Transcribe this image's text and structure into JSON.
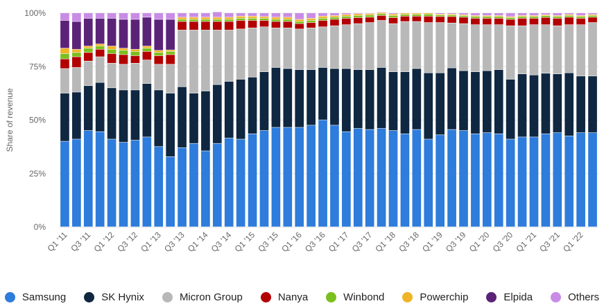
{
  "chart_data": {
    "type": "bar",
    "stacked": true,
    "title": "",
    "xlabel": "",
    "ylabel": "Share of revenue",
    "ylim": [
      0,
      100
    ],
    "yticks": [
      "0%",
      "25%",
      "50%",
      "75%",
      "100%"
    ],
    "xtick_labels": [
      "Q1 '11",
      "Q3 '11",
      "Q1 '12",
      "Q3 '12",
      "Q1 '13",
      "Q3 '13",
      "Q1 '14",
      "Q3 '14",
      "Q1 '15",
      "Q3 '15",
      "Q1 '16",
      "Q3 '16",
      "Q1 '17",
      "Q3 '17",
      "Q1 '18",
      "Q3 '18",
      "Q1 '19",
      "Q3 '19",
      "Q1 '20",
      "Q3 '20",
      "Q1 '21",
      "Q3 '21",
      "Q1 '22"
    ],
    "categories": [
      "Q1 '11",
      "Q2 '11",
      "Q3 '11",
      "Q4 '11",
      "Q1 '12",
      "Q2 '12",
      "Q3 '12",
      "Q4 '12",
      "Q1 '13",
      "Q2 '13",
      "Q3 '13",
      "Q4 '13",
      "Q1 '14",
      "Q2 '14",
      "Q3 '14",
      "Q4 '14",
      "Q1 '15",
      "Q2 '15",
      "Q3 '15",
      "Q4 '15",
      "Q1 '16",
      "Q2 '16",
      "Q3 '16",
      "Q4 '16",
      "Q1 '17",
      "Q2 '17",
      "Q3 '17",
      "Q4 '17",
      "Q1 '18",
      "Q2 '18",
      "Q3 '18",
      "Q4 '18",
      "Q1 '19",
      "Q2 '19",
      "Q3 '19",
      "Q4 '19",
      "Q1 '20",
      "Q2 '20",
      "Q3 '20",
      "Q4 '20",
      "Q1 '21",
      "Q2 '21",
      "Q3 '21",
      "Q4 '21",
      "Q1 '22",
      "Q2 '22"
    ],
    "series": [
      {
        "name": "Samsung",
        "color": "#2e7cdb",
        "values": [
          40,
          41,
          45,
          44.5,
          41,
          39.5,
          40.5,
          42,
          37.5,
          32.8,
          37,
          39,
          35.5,
          39,
          41.5,
          41,
          43.5,
          45,
          46.5,
          46.5,
          46.5,
          47.5,
          50,
          47.5,
          44.5,
          46,
          45.5,
          46,
          45,
          43.5,
          45.5,
          41,
          43,
          45.5,
          45,
          43.5,
          44,
          43.5,
          41,
          42,
          42,
          43.5,
          44,
          42.5,
          44,
          44
        ]
      },
      {
        "name": "SK Hynix",
        "color": "#0f2740",
        "values": [
          22.5,
          22,
          21,
          23,
          24,
          24.5,
          23.5,
          25,
          26.5,
          29.7,
          28.5,
          23.5,
          28,
          27.5,
          26.5,
          28,
          26.5,
          27.5,
          28,
          27.5,
          27,
          26,
          24.5,
          26.5,
          29.5,
          27.5,
          28,
          28.5,
          27.5,
          29,
          28.5,
          31,
          29,
          28.8,
          28,
          29,
          29,
          30,
          28,
          29.5,
          29,
          28.3,
          27.5,
          29.5,
          26.5,
          26.5
        ]
      },
      {
        "name": "Micron Group",
        "color": "#b8b8b8",
        "values": [
          11.5,
          11.5,
          11.5,
          12,
          11.5,
          12,
          12.5,
          11,
          12,
          13.5,
          26.5,
          29.5,
          28.5,
          25.5,
          24,
          23.5,
          23,
          21,
          18.5,
          19,
          19,
          19.5,
          19,
          20,
          20.5,
          21.5,
          22,
          22,
          22.5,
          23.5,
          22,
          23.5,
          23.5,
          21,
          22,
          22,
          21.5,
          21,
          25,
          22.5,
          23.5,
          22.7,
          22.5,
          22.5,
          24,
          25
        ]
      },
      {
        "name": "Nanya",
        "color": "#b30000",
        "values": [
          4.5,
          5,
          4,
          3.5,
          4.5,
          4.5,
          3.5,
          4,
          4,
          4.5,
          4,
          4,
          4,
          4,
          4,
          4,
          3.5,
          3,
          3,
          3,
          2.5,
          2.5,
          3,
          3,
          3,
          2.8,
          2.5,
          2.3,
          2.8,
          2.5,
          2.5,
          3,
          2.8,
          3,
          3,
          3,
          3,
          3,
          3,
          3.5,
          3,
          3.4,
          3.5,
          3.5,
          3,
          2.5
        ]
      },
      {
        "name": "Winbond",
        "color": "#7bbf1e",
        "values": [
          2.5,
          2,
          2,
          1.5,
          2,
          2,
          2,
          1.5,
          1.5,
          1.5,
          1,
          1,
          1,
          1,
          1,
          1,
          1,
          1,
          1,
          1,
          1,
          1,
          1,
          1,
          1,
          1,
          1,
          0.8,
          1,
          0.8,
          0.8,
          1,
          0.7,
          0.7,
          0.7,
          0.8,
          0.8,
          0.8,
          0.8,
          0.8,
          0.8,
          0.8,
          0.8,
          0.8,
          0.8,
          0.8
        ]
      },
      {
        "name": "Powerchip",
        "color": "#f0b427",
        "values": [
          2.5,
          1.5,
          1,
          1,
          1.5,
          1,
          1,
          1,
          1,
          0.7,
          1,
          1,
          1,
          1,
          1,
          1,
          1,
          0.8,
          1,
          1,
          1,
          1,
          1,
          0.8,
          0.8,
          0.8,
          0.7,
          0.6,
          0.7,
          0.6,
          0.6,
          0.5,
          0.5,
          0.5,
          0.5,
          0.5,
          0.5,
          0.5,
          0.5,
          0.5,
          0.5,
          0.5,
          0.5,
          0.5,
          0.5,
          0.5
        ]
      },
      {
        "name": "Elpida",
        "color": "#5b2378",
        "values": [
          13,
          13,
          13,
          12,
          13,
          13.5,
          14,
          13.5,
          14.5,
          14.3,
          0,
          0,
          0,
          0,
          0,
          0,
          0,
          0,
          0,
          0,
          0,
          0,
          0,
          0,
          0,
          0,
          0,
          0,
          0,
          0,
          0,
          0,
          0,
          0,
          0,
          0,
          0,
          0,
          0,
          0,
          0,
          0,
          0,
          0,
          0,
          0
        ]
      },
      {
        "name": "Others",
        "color": "#c98ce6",
        "values": [
          3.5,
          4,
          2.5,
          2.5,
          2.5,
          3,
          3,
          2,
          3,
          3,
          2,
          2,
          2,
          2.5,
          2,
          1.5,
          1.5,
          1.7,
          2,
          2,
          3,
          2.5,
          1.5,
          1.2,
          0.7,
          0.4,
          0.3,
          0.3,
          0.5,
          0.1,
          0.1,
          0,
          0.5,
          0.5,
          0.8,
          1.2,
          1.2,
          1.2,
          1.7,
          1.2,
          1.2,
          0.8,
          1.2,
          0.7,
          1.2,
          0.7
        ]
      }
    ],
    "legend_position": "bottom"
  }
}
